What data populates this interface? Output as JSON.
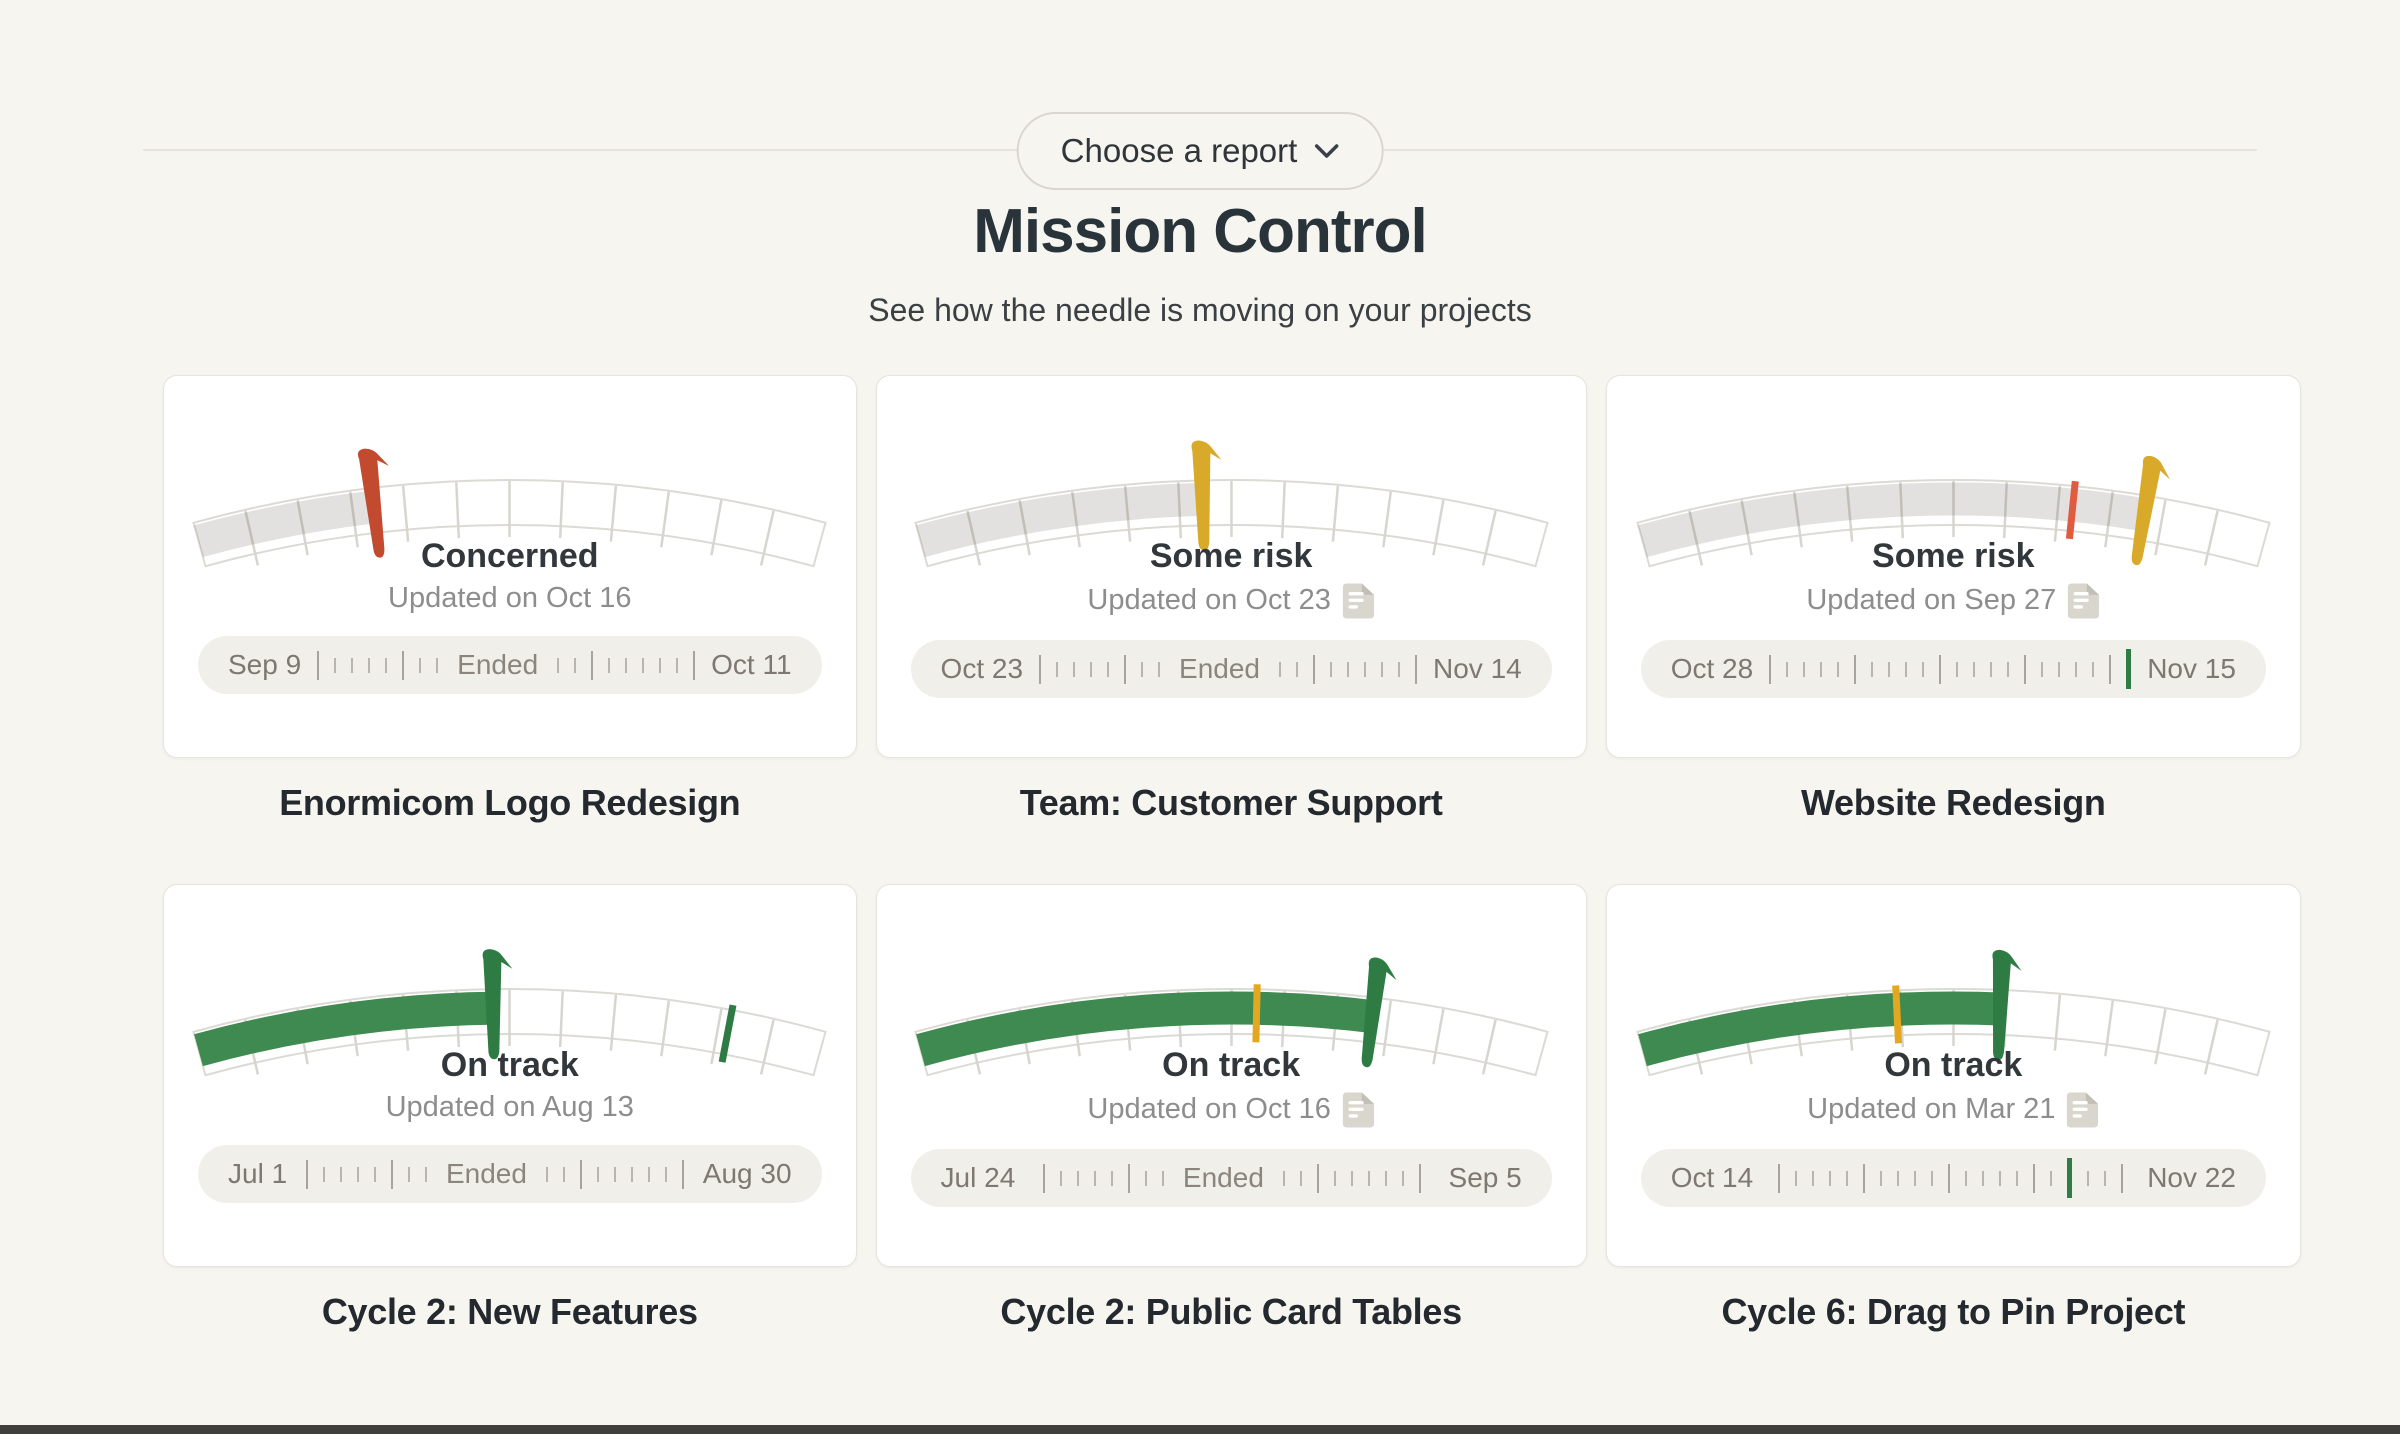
{
  "header": {
    "report_picker_label": "Choose a report",
    "title": "Mission Control",
    "subtitle": "See how the needle is moving on your projects"
  },
  "status_colors": {
    "on_track": "#2e7c44",
    "some_risk": "#d9a929",
    "concerned": "#c14a2f"
  },
  "cards": [
    {
      "title": "Enormicom Logo Redesign",
      "status": "Concerned",
      "updated": "Updated on Oct 16",
      "note_icon": false,
      "gauge": {
        "fill_pct": 29,
        "fill": "rgba(95,90,80,0.18)",
        "needle_pct": 29,
        "needle": "#c14a2f",
        "targets": []
      },
      "timeline": {
        "start": "Sep 9",
        "end": "Oct 11",
        "mid_label": "Ended",
        "ticks": [
          "T",
          "s",
          "s",
          "s",
          "s",
          "T",
          "s",
          "s",
          "E",
          "s",
          "s",
          "T",
          "s",
          "s",
          "s",
          "s",
          "s",
          "T"
        ]
      }
    },
    {
      "title": "Team: Customer Support",
      "status": "Some risk",
      "updated": "Updated on Oct 23",
      "note_icon": true,
      "gauge": {
        "fill_pct": 46,
        "fill": "rgba(95,90,80,0.18)",
        "needle_pct": 46,
        "needle": "#d9a929",
        "targets": []
      },
      "timeline": {
        "start": "Oct 23",
        "end": "Nov 14",
        "mid_label": "Ended",
        "ticks": [
          "T",
          "s",
          "s",
          "s",
          "s",
          "T",
          "s",
          "s",
          "E",
          "s",
          "s",
          "T",
          "s",
          "s",
          "s",
          "s",
          "s",
          "T"
        ]
      }
    },
    {
      "title": "Website Redesign",
      "status": "Some risk",
      "updated": "Updated on Sep 27",
      "note_icon": true,
      "gauge": {
        "fill_pct": 81,
        "fill": "rgba(95,90,80,0.18)",
        "needle_pct": 81,
        "needle": "#d9a929",
        "targets": [
          {
            "pct": 69,
            "color": "#e05c40"
          }
        ]
      },
      "timeline": {
        "start": "Oct 28",
        "end": "Nov 15",
        "mid_label": null,
        "ticks": [
          "T",
          "s",
          "s",
          "s",
          "s",
          "T",
          "s",
          "s",
          "s",
          "s",
          "T",
          "s",
          "s",
          "s",
          "s",
          "T",
          "s",
          "s",
          "s",
          "s",
          "T",
          "G"
        ]
      }
    },
    {
      "title": "Cycle 2: New Features",
      "status": "On track",
      "updated": "Updated on Aug 13",
      "note_icon": false,
      "gauge": {
        "fill_pct": 48,
        "fill": "#3e8a50",
        "needle_pct": 48,
        "needle": "#2e7c44",
        "targets": [
          {
            "pct": 85,
            "color": "#2e7c44"
          }
        ]
      },
      "timeline": {
        "start": "Jul 1",
        "end": "Aug 30",
        "mid_label": "Ended",
        "ticks": [
          "T",
          "s",
          "s",
          "s",
          "s",
          "T",
          "s",
          "s",
          "E",
          "s",
          "s",
          "T",
          "s",
          "s",
          "s",
          "s",
          "s",
          "T"
        ]
      }
    },
    {
      "title": "Cycle 2: Public Card Tables",
      "status": "On track",
      "updated": "Updated on Oct 16",
      "note_icon": true,
      "gauge": {
        "fill_pct": 73,
        "fill": "#3e8a50",
        "needle_pct": 73,
        "needle": "#2e7c44",
        "targets": [
          {
            "pct": 54,
            "color": "#e3a81f"
          }
        ]
      },
      "timeline": {
        "start": "Jul 24",
        "end": "Sep 5",
        "mid_label": "Ended",
        "ticks": [
          "T",
          "s",
          "s",
          "s",
          "s",
          "T",
          "s",
          "s",
          "E",
          "s",
          "s",
          "T",
          "s",
          "s",
          "s",
          "s",
          "s",
          "T"
        ]
      }
    },
    {
      "title": "Cycle 6: Drag to Pin Project",
      "status": "On track",
      "updated": "Updated on Mar 21",
      "note_icon": true,
      "gauge": {
        "fill_pct": 58,
        "fill": "#3e8a50",
        "needle_pct": 58,
        "needle": "#2e7c44",
        "targets": [
          {
            "pct": 41,
            "color": "#e3a81f"
          }
        ]
      },
      "timeline": {
        "start": "Oct 14",
        "end": "Nov 22",
        "mid_label": null,
        "ticks": [
          "T",
          "s",
          "s",
          "s",
          "s",
          "T",
          "s",
          "s",
          "s",
          "s",
          "T",
          "s",
          "s",
          "s",
          "s",
          "T",
          "s",
          "G",
          "s",
          "s",
          "T"
        ]
      }
    }
  ]
}
